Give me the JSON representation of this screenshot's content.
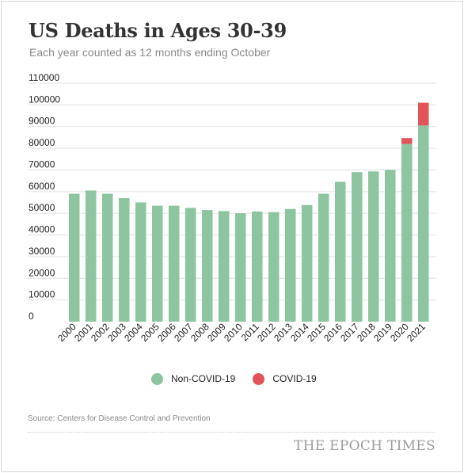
{
  "header": {
    "title": "US Deaths in Ages 30-39",
    "subtitle": "Each year counted as 12 months ending October"
  },
  "footer": {
    "source": "Source: Centers for Disease Control and Prevention",
    "brand": "THE EPOCH TIMES"
  },
  "colors": {
    "non_covid": "#8cc5a0",
    "covid": "#e0545a",
    "gridline": "#e2e2e2"
  },
  "chart_data": {
    "type": "bar",
    "stacked": true,
    "title": "US Deaths in Ages 30-39",
    "subtitle": "Each year counted as 12 months ending October",
    "xlabel": "",
    "ylabel": "",
    "ylim": [
      0,
      110000
    ],
    "yticks": [
      0,
      10000,
      20000,
      30000,
      40000,
      50000,
      60000,
      70000,
      80000,
      90000,
      100000,
      110000
    ],
    "grid": true,
    "legend_position": "bottom",
    "categories": [
      "2000",
      "2001",
      "2002",
      "2003",
      "2004",
      "2005",
      "2006",
      "2007",
      "2008",
      "2009",
      "2010",
      "2011",
      "2012",
      "2013",
      "2014",
      "2015",
      "2016",
      "2017",
      "2018",
      "2019",
      "2020",
      "2021"
    ],
    "series": [
      {
        "name": "Non-COVID-19",
        "color": "#8cc5a0",
        "values": [
          59000,
          60500,
          59000,
          57000,
          55000,
          53500,
          53500,
          52500,
          51500,
          51000,
          50000,
          50800,
          50500,
          52000,
          53800,
          59000,
          64500,
          69000,
          69300,
          70000,
          82000,
          90500
        ]
      },
      {
        "name": "COVID-19",
        "color": "#e0545a",
        "values": [
          0,
          0,
          0,
          0,
          0,
          0,
          0,
          0,
          0,
          0,
          0,
          0,
          0,
          0,
          0,
          0,
          0,
          0,
          0,
          0,
          2700,
          10500
        ]
      }
    ]
  }
}
